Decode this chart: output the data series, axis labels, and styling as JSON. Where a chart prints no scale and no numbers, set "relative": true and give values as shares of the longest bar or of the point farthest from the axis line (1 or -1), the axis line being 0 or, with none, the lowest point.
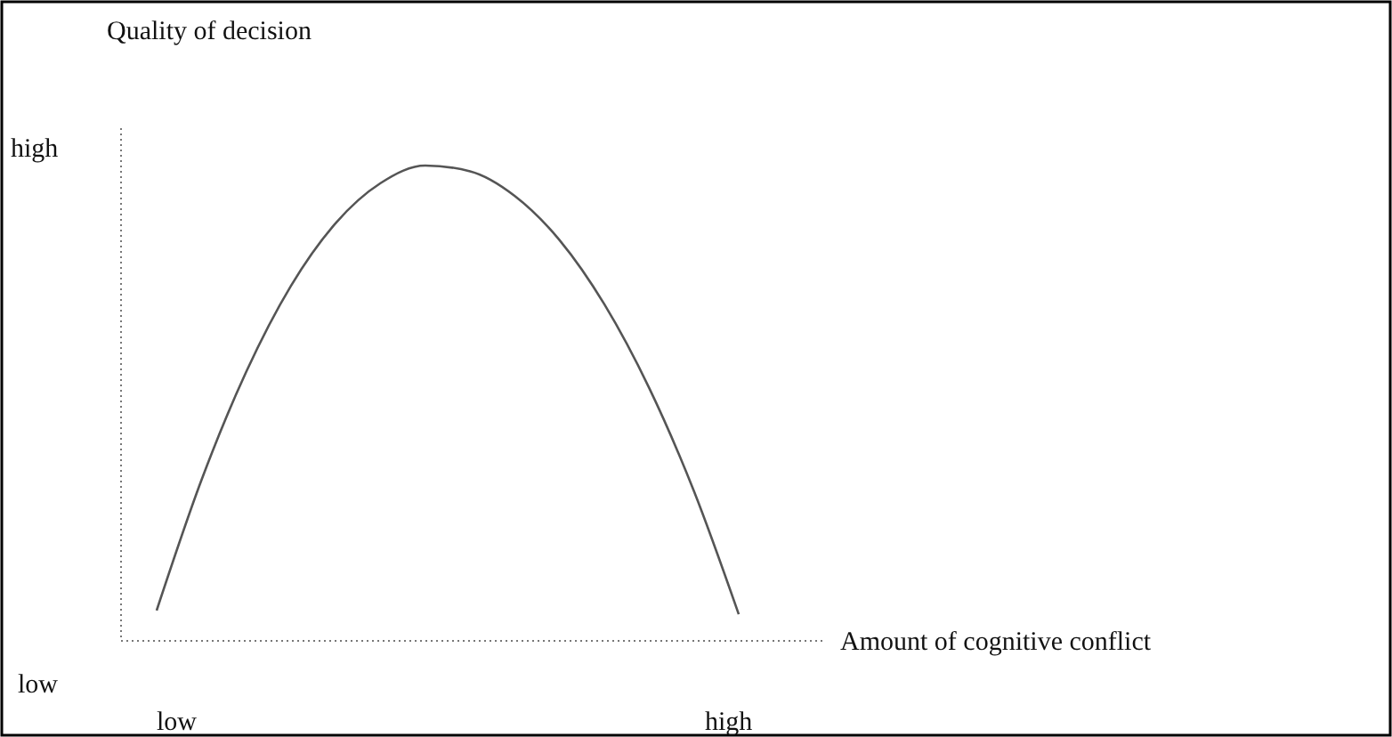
{
  "chart_data": {
    "type": "line",
    "relative": true,
    "ylabel": "Quality of decision",
    "xlabel": "Amount of cognitive conflict",
    "annotations": [
      "high",
      "low",
      "low",
      "high"
    ],
    "categories": [
      null,
      null,
      null,
      null,
      null,
      null,
      null,
      null,
      null,
      null,
      null,
      null,
      null,
      null
    ],
    "series": [
      {
        "color": "#555555",
        "values": [
          0.064,
          0.338,
          0.566,
          0.747,
          0.879,
          0.963,
          1,
          0.988,
          0.936,
          0.843,
          0.708,
          0.532,
          0.315,
          0.056
        ]
      }
    ],
    "marker": "none",
    "line_style": "solid"
  }
}
